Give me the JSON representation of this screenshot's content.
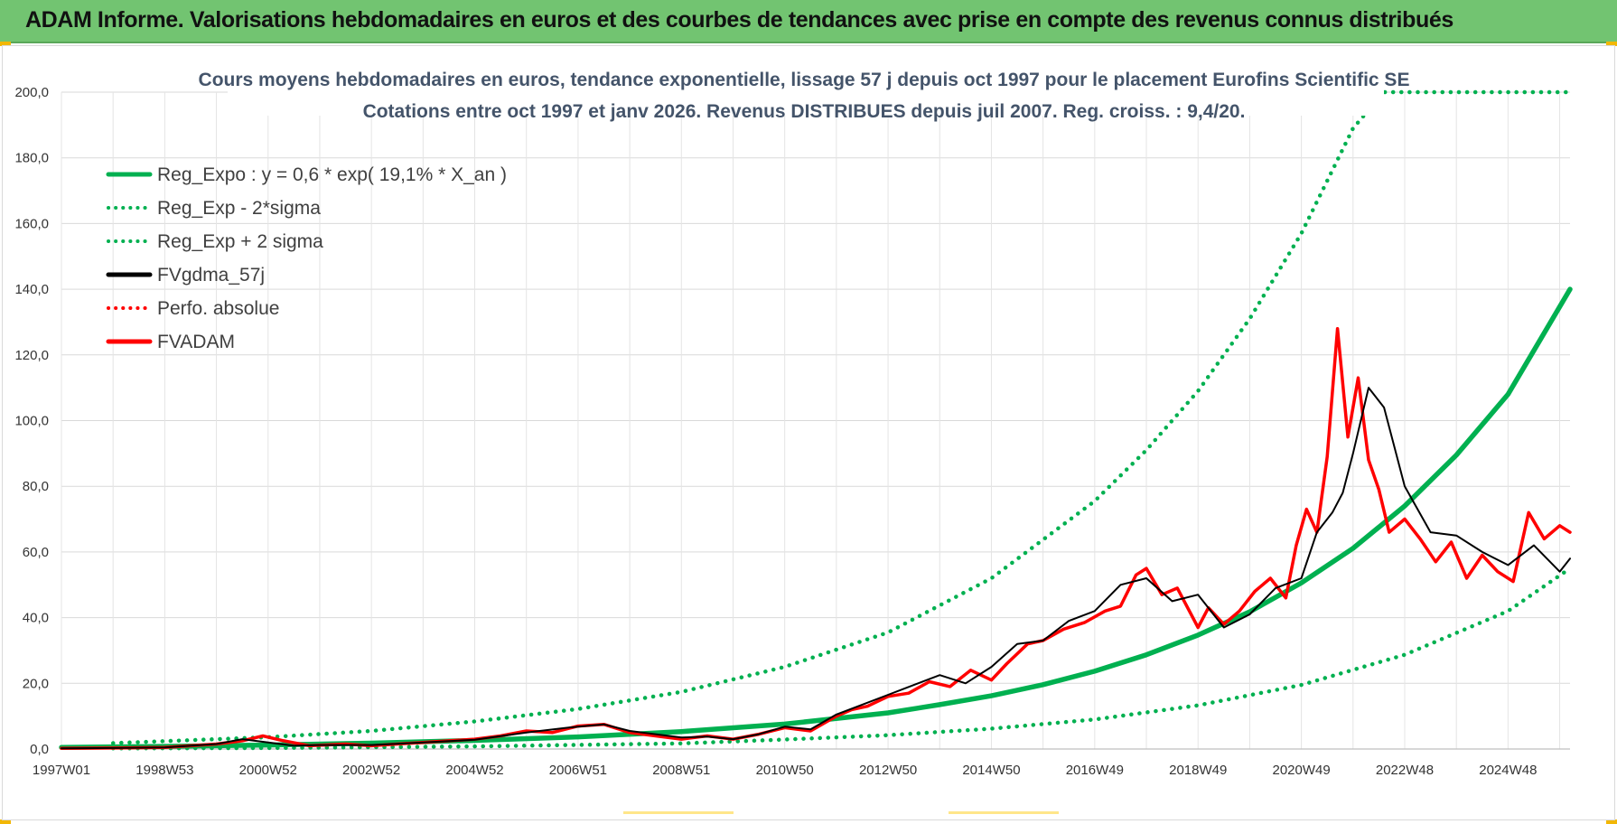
{
  "header": {
    "title": "ADAM Informe. Valorisations hebdomadaires en euros et des courbes de tendances avec prise en compte des revenus connus distribués"
  },
  "chart_data": {
    "type": "line",
    "title_line1": "Cours moyens hebdomadaires en euros, tendance exponentielle, lissage 57 j depuis oct 1997 pour le placement Eurofins Scientific SE",
    "title_line2": "Cotations entre oct 1997 et janv 2026. Revenus DISTRIBUES depuis juil 2007. Reg. croiss. : 9,4/20.",
    "ylim": [
      0,
      200
    ],
    "xlim": [
      1997.0,
      2026.2
    ],
    "grid": true,
    "legend_position": "top-left",
    "y_ticks": [
      "0,0",
      "20,0",
      "40,0",
      "60,0",
      "80,0",
      "100,0",
      "120,0",
      "140,0",
      "160,0",
      "180,0",
      "200,0"
    ],
    "x_ticks": [
      {
        "label": "1997W01",
        "x": 1997.0
      },
      {
        "label": "1998W53",
        "x": 1999.0
      },
      {
        "label": "2000W52",
        "x": 2001.0
      },
      {
        "label": "2002W52",
        "x": 2003.0
      },
      {
        "label": "2004W52",
        "x": 2005.0
      },
      {
        "label": "2006W51",
        "x": 2007.0
      },
      {
        "label": "2008W51",
        "x": 2009.0
      },
      {
        "label": "2010W50",
        "x": 2011.0
      },
      {
        "label": "2012W50",
        "x": 2013.0
      },
      {
        "label": "2014W50",
        "x": 2015.0
      },
      {
        "label": "2016W49",
        "x": 2017.0
      },
      {
        "label": "2018W49",
        "x": 2019.0
      },
      {
        "label": "2020W49",
        "x": 2021.0
      },
      {
        "label": "2022W48",
        "x": 2023.0
      },
      {
        "label": "2024W48",
        "x": 2025.0
      }
    ],
    "series": [
      {
        "name": "Reg_Expo : y = 0,6 * exp( 19,1% *  X_an )",
        "color": "#00b050",
        "style": "solid",
        "x": [
          1997.0,
          1999.0,
          2001.0,
          2003.0,
          2005.0,
          2007.0,
          2009.0,
          2011.0,
          2013.0,
          2014.0,
          2015.0,
          2016.0,
          2017.0,
          2018.0,
          2019.0,
          2020.0,
          2021.0,
          2022.0,
          2023.0,
          2024.0,
          2025.0,
          2026.2
        ],
        "values": [
          0.5,
          0.8,
          1.2,
          1.8,
          2.6,
          3.7,
          5.3,
          7.6,
          11.0,
          13.5,
          16.2,
          19.6,
          23.7,
          28.7,
          34.7,
          41.8,
          50.6,
          61.1,
          74.0,
          89.5,
          108.0,
          140.0
        ]
      },
      {
        "name": "Reg_Exp - 2*sigma",
        "color": "#00b050",
        "style": "dotted",
        "x": [
          1998.0,
          2001.0,
          2005.0,
          2009.0,
          2011.0,
          2013.0,
          2015.0,
          2017.0,
          2019.0,
          2021.0,
          2023.0,
          2025.0,
          2026.2
        ],
        "values": [
          0.2,
          0.3,
          0.8,
          1.7,
          2.9,
          4.2,
          6.2,
          9.0,
          13.3,
          19.5,
          28.7,
          42.0,
          55.0
        ]
      },
      {
        "name": "Reg_Exp + 2 sigma",
        "color": "#00b050",
        "style": "dotted",
        "x": [
          1998.0,
          2001.0,
          2003.0,
          2005.0,
          2007.0,
          2009.0,
          2011.0,
          2013.0,
          2015.0,
          2017.0,
          2018.0,
          2019.0,
          2020.0,
          2021.0,
          2022.0,
          2022.6,
          2026.2
        ],
        "values": [
          1.8,
          3.6,
          5.5,
          8.4,
          12.2,
          17.4,
          25.0,
          35.5,
          52.0,
          75.5,
          91.0,
          109.0,
          131.0,
          157.0,
          189.0,
          200.0,
          200.0
        ]
      },
      {
        "name": "FVgdma_57j",
        "color": "#000000",
        "style": "solid",
        "x": [
          1997.0,
          1998.0,
          1999.0,
          2000.0,
          2000.5,
          2001.0,
          2001.5,
          2002.0,
          2003.0,
          2004.0,
          2005.0,
          2006.0,
          2006.8,
          2007.5,
          2008.0,
          2008.5,
          2009.0,
          2009.5,
          2010.0,
          2010.5,
          2011.0,
          2011.5,
          2012.0,
          2012.5,
          2013.0,
          2013.5,
          2014.0,
          2014.5,
          2015.0,
          2015.5,
          2016.0,
          2016.5,
          2017.0,
          2017.5,
          2018.0,
          2018.5,
          2019.0,
          2019.5,
          2020.0,
          2020.5,
          2021.0,
          2021.3,
          2021.6,
          2021.8,
          2022.0,
          2022.3,
          2022.6,
          2023.0,
          2023.5,
          2024.0,
          2024.5,
          2025.0,
          2025.5,
          2026.0,
          2026.2
        ],
        "values": [
          0.2,
          0.3,
          0.5,
          1.5,
          3.0,
          2.0,
          1.0,
          1.2,
          1.2,
          2.0,
          2.8,
          5.0,
          6.5,
          7.5,
          5.5,
          4.5,
          3.5,
          3.8,
          3.0,
          4.5,
          6.8,
          6.0,
          10.5,
          13.5,
          16.5,
          19.5,
          22.5,
          20.0,
          25.0,
          32.0,
          33.0,
          39.0,
          42.0,
          50.0,
          52.0,
          45.0,
          47.0,
          37.0,
          41.0,
          49.0,
          52.0,
          66.0,
          72.0,
          78.0,
          90.0,
          110.0,
          104.0,
          80.0,
          66.0,
          65.0,
          60.0,
          56.0,
          62.0,
          54.0,
          58.0
        ],
        "values_note": "smoothed series closely following FVADAM"
      },
      {
        "name": "Perfo. absolue",
        "color": "#ff0000",
        "style": "dotted",
        "x": [],
        "values": []
      },
      {
        "name": "FVADAM",
        "color": "#ff0000",
        "style": "solid",
        "x": [
          1997.0,
          1998.0,
          1999.0,
          2000.0,
          2000.5,
          2000.9,
          2001.3,
          2001.8,
          2002.5,
          2003.0,
          2003.5,
          2004.0,
          2004.5,
          2005.0,
          2005.5,
          2006.0,
          2006.5,
          2007.0,
          2007.5,
          2008.0,
          2008.5,
          2009.0,
          2009.5,
          2010.0,
          2010.5,
          2011.0,
          2011.5,
          2012.0,
          2012.3,
          2012.6,
          2013.0,
          2013.4,
          2013.8,
          2014.2,
          2014.6,
          2015.0,
          2015.3,
          2015.7,
          2016.0,
          2016.4,
          2016.8,
          2017.2,
          2017.5,
          2017.8,
          2018.0,
          2018.3,
          2018.6,
          2019.0,
          2019.2,
          2019.5,
          2019.8,
          2020.1,
          2020.4,
          2020.7,
          2020.9,
          2021.1,
          2021.3,
          2021.5,
          2021.7,
          2021.9,
          2022.1,
          2022.3,
          2022.5,
          2022.7,
          2023.0,
          2023.3,
          2023.6,
          2023.9,
          2024.2,
          2024.5,
          2024.8,
          2025.1,
          2025.4,
          2025.7,
          2026.0,
          2026.2
        ],
        "values": [
          0.2,
          0.3,
          0.5,
          1.5,
          2.5,
          4.0,
          2.5,
          1.0,
          1.5,
          1.0,
          1.5,
          2.0,
          2.5,
          3.0,
          4.0,
          5.5,
          5.0,
          7.0,
          7.5,
          5.0,
          4.0,
          3.0,
          4.0,
          3.0,
          4.5,
          6.5,
          5.5,
          10.0,
          12.0,
          13.0,
          16.0,
          17.0,
          20.5,
          19.0,
          24.0,
          21.0,
          26.0,
          32.0,
          33.0,
          36.5,
          38.5,
          42.0,
          43.5,
          53.0,
          55.0,
          47.0,
          49.0,
          37.0,
          43.0,
          38.0,
          42.0,
          48.0,
          52.0,
          46.0,
          62.0,
          73.0,
          66.0,
          89.0,
          128.0,
          95.0,
          113.0,
          88.0,
          79.0,
          66.0,
          70.0,
          64.0,
          57.0,
          63.0,
          52.0,
          59.0,
          54.0,
          51.0,
          72.0,
          64.0,
          68.0,
          66.0
        ]
      }
    ],
    "legend": [
      {
        "label": "Reg_Expo : y = 0,6 * exp( 19,1% *  X_an )",
        "color": "#00b050",
        "style": "solid"
      },
      {
        "label": "Reg_Exp - 2*sigma",
        "color": "#00b050",
        "style": "dotted"
      },
      {
        "label": "Reg_Exp + 2 sigma",
        "color": "#00b050",
        "style": "dotted"
      },
      {
        "label": "FVgdma_57j",
        "color": "#000000",
        "style": "solid"
      },
      {
        "label": "Perfo. absolue",
        "color": "#ff0000",
        "style": "dotted"
      },
      {
        "label": "FVADAM",
        "color": "#ff0000",
        "style": "solid"
      }
    ]
  }
}
